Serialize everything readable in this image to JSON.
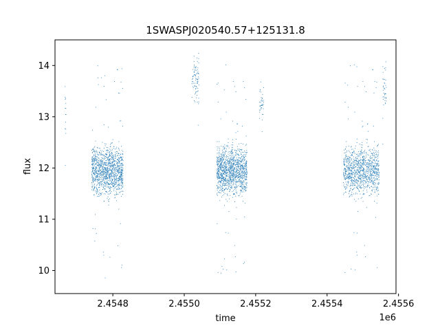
{
  "chart_data": {
    "type": "scatter",
    "title": "1SWASPJ020540.57+125131.8",
    "xlabel": "time",
    "ylabel": "flux",
    "x_offset_label": "1e6",
    "xlim": [
      2454638,
      2455593
    ],
    "ylim": [
      9.55,
      14.5
    ],
    "x_ticks": [
      2454800,
      2455000,
      2455200,
      2455400,
      2455600
    ],
    "x_tick_labels": [
      "2.4548",
      "2.4550",
      "2.4552",
      "2.4554",
      "2.4556"
    ],
    "y_ticks": [
      10,
      11,
      12,
      13,
      14
    ],
    "y_tick_labels": [
      "10",
      "11",
      "12",
      "13",
      "14"
    ],
    "grid": false,
    "legend": "none",
    "marker_color": "#1f77b4",
    "clusters": [
      {
        "x_range": [
          2454665,
          2454668
        ],
        "y_center": 13.1,
        "y_spread": 0.55,
        "count": 14
      },
      {
        "x_range": [
          2454740,
          2454828
        ],
        "y_center": 11.95,
        "y_spread": 0.5,
        "count": 1300
      },
      {
        "x_range": [
          2455020,
          2455040
        ],
        "y_center": 13.75,
        "y_spread": 0.5,
        "count": 90
      },
      {
        "x_range": [
          2455090,
          2455175
        ],
        "y_center": 11.95,
        "y_spread": 0.5,
        "count": 1300
      },
      {
        "x_range": [
          2455210,
          2455222
        ],
        "y_center": 13.3,
        "y_spread": 0.5,
        "count": 40
      },
      {
        "x_range": [
          2455445,
          2455545
        ],
        "y_center": 11.95,
        "y_spread": 0.5,
        "count": 1100
      },
      {
        "x_range": [
          2455555,
          2455565
        ],
        "y_center": 13.5,
        "y_spread": 0.55,
        "count": 40
      }
    ]
  }
}
